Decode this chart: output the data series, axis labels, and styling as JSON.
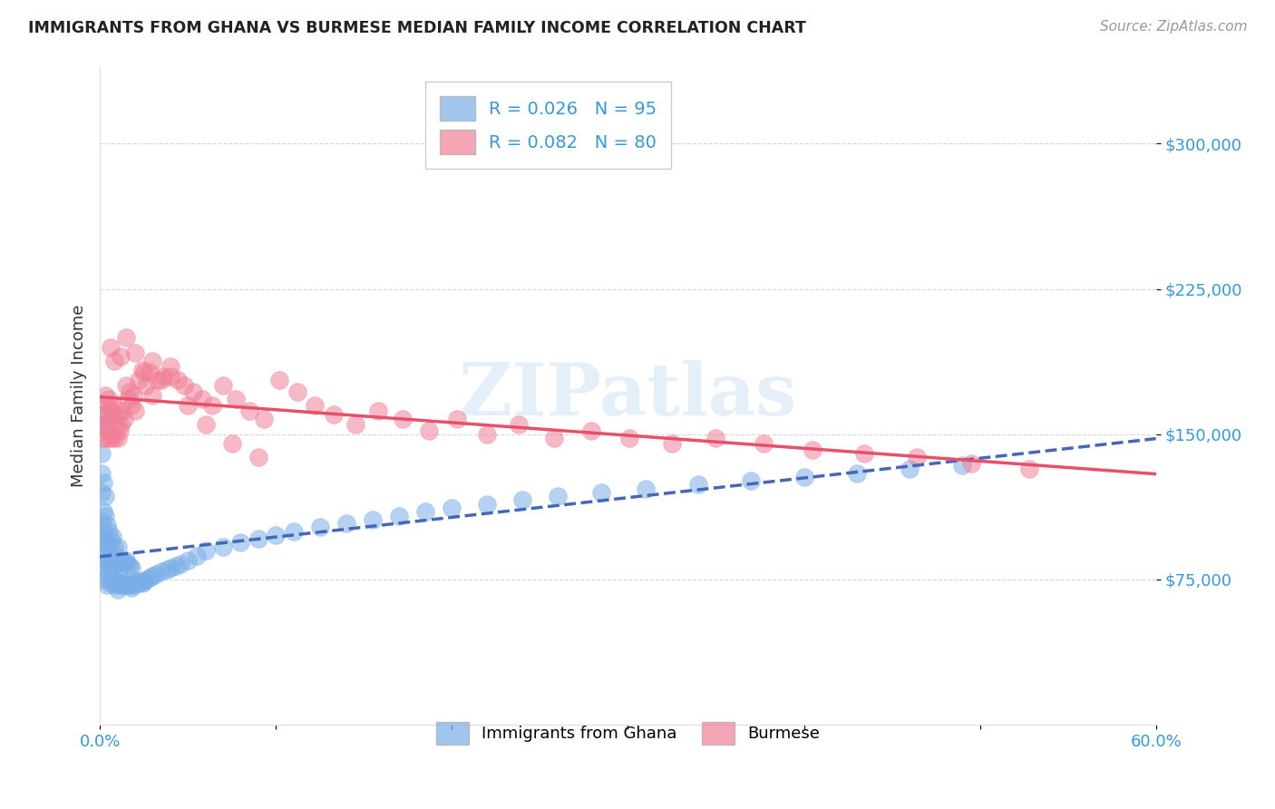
{
  "title": "IMMIGRANTS FROM GHANA VS BURMESE MEDIAN FAMILY INCOME CORRELATION CHART",
  "source": "Source: ZipAtlas.com",
  "ylabel": "Median Family Income",
  "yticks": [
    75000,
    150000,
    225000,
    300000
  ],
  "ytick_labels": [
    "$75,000",
    "$150,000",
    "$225,000",
    "$300,000"
  ],
  "xlim": [
    0.0,
    0.6
  ],
  "ylim": [
    0,
    340000
  ],
  "watermark": "ZIPatlas",
  "ghana_color": "#7aaee8",
  "burmese_color": "#f08098",
  "ghana_trend_color": "#4466bb",
  "burmese_trend_color": "#e8506a",
  "ghana_R": 0.026,
  "ghana_N": 95,
  "burmese_R": 0.082,
  "burmese_N": 80,
  "ghana_points_x": [
    0.001,
    0.001,
    0.001,
    0.001,
    0.001,
    0.001,
    0.001,
    0.002,
    0.002,
    0.002,
    0.002,
    0.002,
    0.003,
    0.003,
    0.003,
    0.003,
    0.003,
    0.004,
    0.004,
    0.004,
    0.004,
    0.005,
    0.005,
    0.005,
    0.006,
    0.006,
    0.006,
    0.007,
    0.007,
    0.007,
    0.008,
    0.008,
    0.008,
    0.009,
    0.009,
    0.01,
    0.01,
    0.01,
    0.011,
    0.011,
    0.012,
    0.012,
    0.013,
    0.013,
    0.014,
    0.014,
    0.015,
    0.015,
    0.016,
    0.016,
    0.017,
    0.017,
    0.018,
    0.018,
    0.019,
    0.02,
    0.021,
    0.022,
    0.023,
    0.024,
    0.025,
    0.026,
    0.028,
    0.03,
    0.032,
    0.035,
    0.038,
    0.04,
    0.043,
    0.046,
    0.05,
    0.055,
    0.06,
    0.07,
    0.08,
    0.09,
    0.1,
    0.11,
    0.125,
    0.14,
    0.155,
    0.17,
    0.185,
    0.2,
    0.22,
    0.24,
    0.26,
    0.285,
    0.31,
    0.34,
    0.37,
    0.4,
    0.43,
    0.46,
    0.49
  ],
  "ghana_points_y": [
    105000,
    120000,
    130000,
    140000,
    155000,
    160000,
    95000,
    80000,
    90000,
    100000,
    110000,
    125000,
    75000,
    85000,
    95000,
    108000,
    118000,
    72000,
    83000,
    93000,
    103000,
    78000,
    88000,
    100000,
    73000,
    83000,
    95000,
    75000,
    85000,
    97000,
    72000,
    82000,
    92000,
    75000,
    87000,
    70000,
    80000,
    92000,
    73000,
    85000,
    72000,
    84000,
    73000,
    85000,
    72000,
    84000,
    73000,
    85000,
    72000,
    83000,
    72000,
    82000,
    71000,
    81000,
    72000,
    73000,
    74000,
    73000,
    74000,
    73000,
    74000,
    75000,
    76000,
    77000,
    78000,
    79000,
    80000,
    81000,
    82000,
    83000,
    85000,
    87000,
    90000,
    92000,
    94000,
    96000,
    98000,
    100000,
    102000,
    104000,
    106000,
    108000,
    110000,
    112000,
    114000,
    116000,
    118000,
    120000,
    122000,
    124000,
    126000,
    128000,
    130000,
    132000,
    134000
  ],
  "burmese_points_x": [
    0.001,
    0.002,
    0.002,
    0.003,
    0.003,
    0.004,
    0.004,
    0.005,
    0.005,
    0.006,
    0.006,
    0.007,
    0.007,
    0.008,
    0.008,
    0.009,
    0.01,
    0.01,
    0.011,
    0.012,
    0.013,
    0.014,
    0.015,
    0.016,
    0.017,
    0.018,
    0.019,
    0.02,
    0.022,
    0.024,
    0.026,
    0.028,
    0.03,
    0.033,
    0.036,
    0.04,
    0.044,
    0.048,
    0.053,
    0.058,
    0.064,
    0.07,
    0.077,
    0.085,
    0.093,
    0.102,
    0.112,
    0.122,
    0.133,
    0.145,
    0.158,
    0.172,
    0.187,
    0.203,
    0.22,
    0.238,
    0.258,
    0.279,
    0.301,
    0.325,
    0.35,
    0.377,
    0.405,
    0.434,
    0.464,
    0.495,
    0.528,
    0.006,
    0.008,
    0.012,
    0.015,
    0.02,
    0.025,
    0.03,
    0.035,
    0.04,
    0.05,
    0.06,
    0.075,
    0.09
  ],
  "burmese_points_y": [
    155000,
    148000,
    160000,
    155000,
    170000,
    148000,
    165000,
    152000,
    168000,
    148000,
    162000,
    150000,
    165000,
    148000,
    160000,
    155000,
    148000,
    160000,
    152000,
    155000,
    162000,
    158000,
    175000,
    168000,
    172000,
    165000,
    170000,
    162000,
    178000,
    183000,
    175000,
    182000,
    170000,
    178000,
    180000,
    185000,
    178000,
    175000,
    172000,
    168000,
    165000,
    175000,
    168000,
    162000,
    158000,
    178000,
    172000,
    165000,
    160000,
    155000,
    162000,
    158000,
    152000,
    158000,
    150000,
    155000,
    148000,
    152000,
    148000,
    145000,
    148000,
    145000,
    142000,
    140000,
    138000,
    135000,
    132000,
    195000,
    188000,
    190000,
    200000,
    192000,
    182000,
    188000,
    178000,
    180000,
    165000,
    155000,
    145000,
    138000
  ]
}
